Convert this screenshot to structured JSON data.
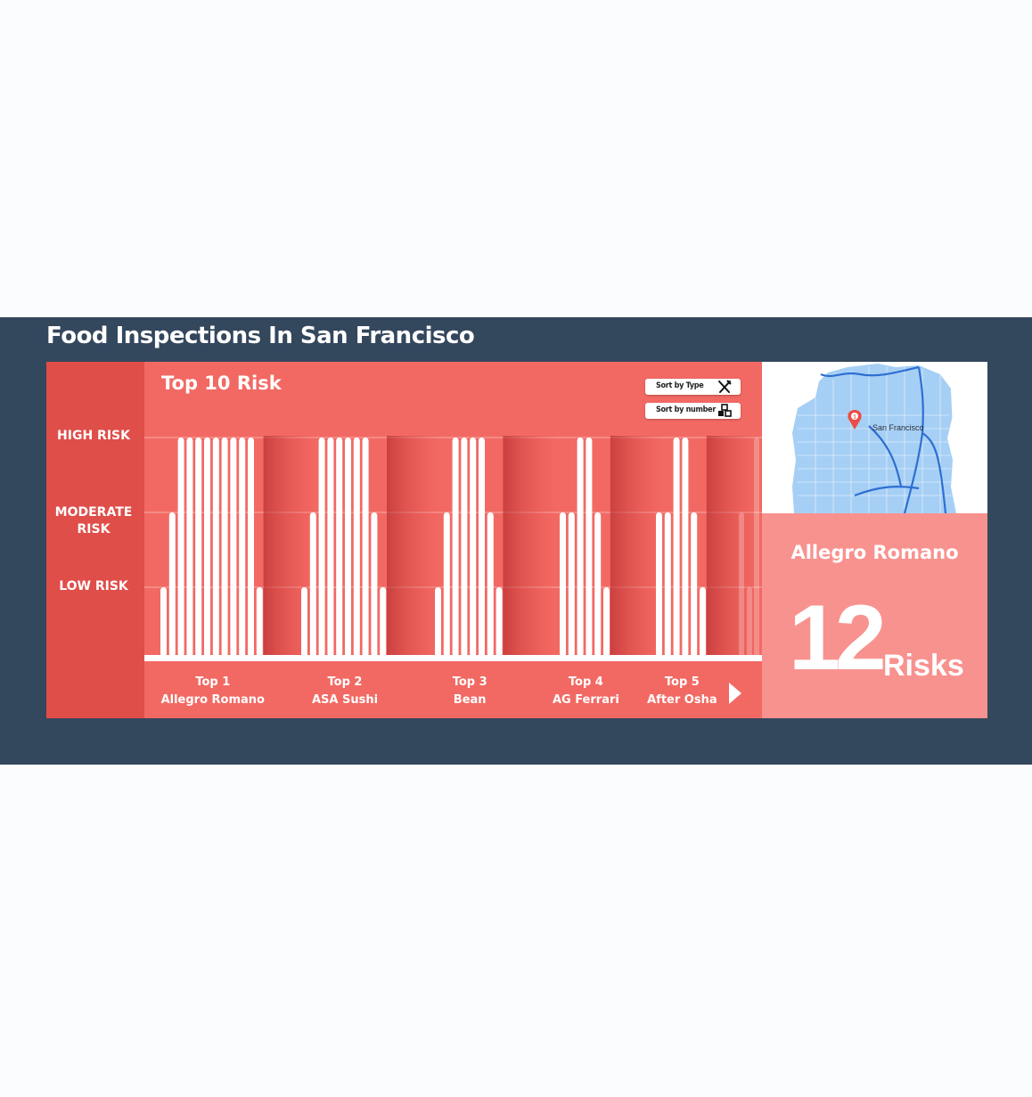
{
  "page": {
    "title": "Food Inspections In San Francisco"
  },
  "axis": {
    "high": "HIGH RISK",
    "moderate_1": "MODERATE",
    "moderate_2": "RISK",
    "low": "LOW RISK"
  },
  "chart_header": {
    "title": "Top 10 Risk"
  },
  "sort": {
    "by_type": "Sort by Type",
    "by_number": "Sort by number"
  },
  "icons": {
    "sort_type": "fork-knife-icon",
    "sort_number": "blocks-icon",
    "next": "play-right-icon",
    "pin": "map-pin-icon"
  },
  "map": {
    "city_label": "San Francisco",
    "pin_label": "1"
  },
  "detail": {
    "name": "Allegro Romano",
    "count": "12",
    "unit": "Risks"
  },
  "colors": {
    "band": "#33475d",
    "panel": "#f26963",
    "axis_col": "#e04e4a",
    "detail": "#f8928f",
    "map_water": "#a6cff5"
  },
  "chart_data": {
    "type": "bar",
    "title": "Top 10 Risk",
    "levels": [
      "LOW RISK",
      "MODERATE RISK",
      "HIGH RISK"
    ],
    "ylim": [
      0,
      3
    ],
    "groups": [
      {
        "rank": "Top 1",
        "name": "Allegro Romano",
        "values": [
          1,
          2,
          3,
          3,
          3,
          3,
          3,
          3,
          3,
          3,
          3,
          1
        ]
      },
      {
        "rank": "Top 2",
        "name": "ASA Sushi",
        "values": [
          1,
          2,
          3,
          3,
          3,
          3,
          3,
          3,
          2,
          1
        ]
      },
      {
        "rank": "Top 3",
        "name": "Bean",
        "values": [
          1,
          2,
          3,
          3,
          3,
          3,
          2,
          1
        ]
      },
      {
        "rank": "Top 4",
        "name": "AG Ferrari",
        "values": [
          2,
          2,
          3,
          3,
          2,
          1
        ]
      },
      {
        "rank": "Top 5",
        "name": "After Osha",
        "values": [
          2,
          2,
          3,
          3,
          2,
          1
        ]
      }
    ]
  }
}
